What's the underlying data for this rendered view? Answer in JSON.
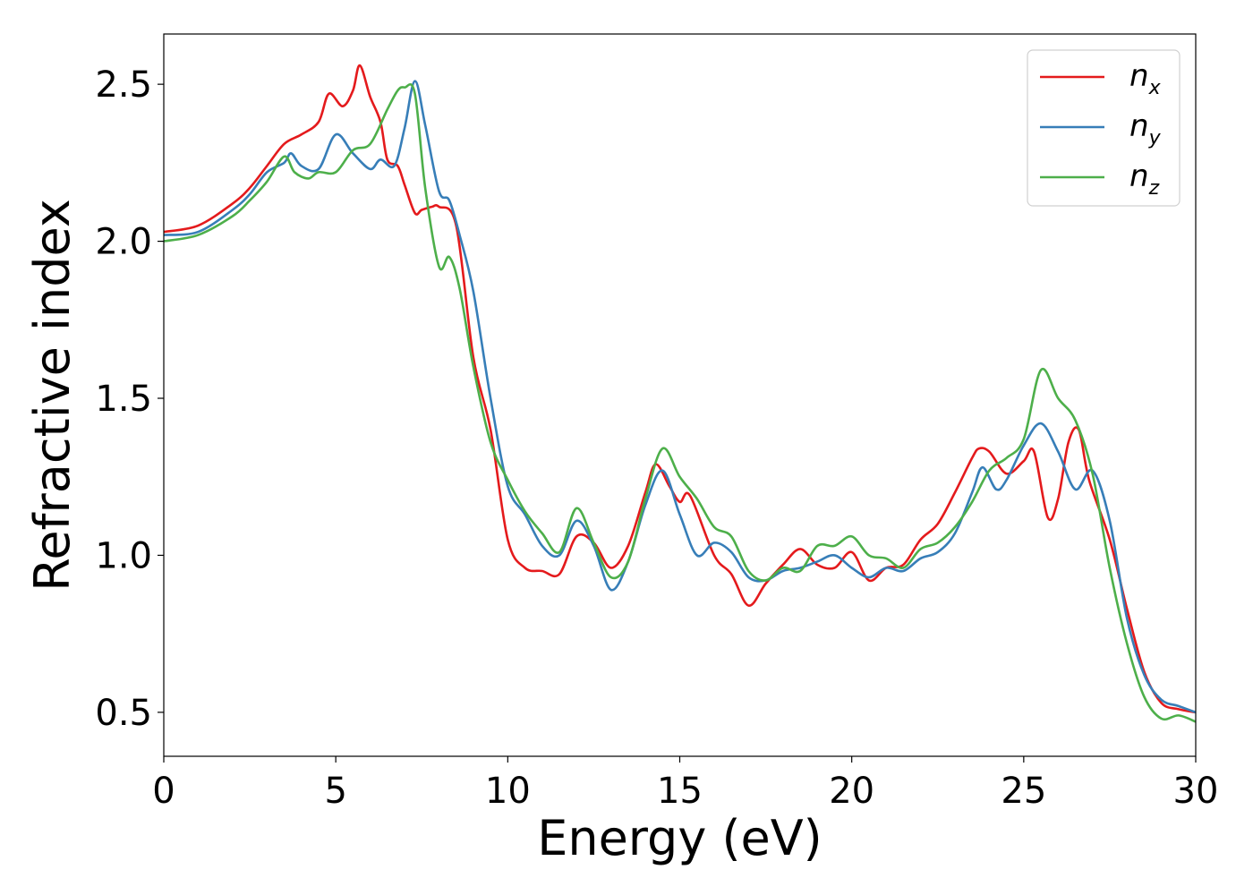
{
  "chart_data": {
    "type": "line",
    "title": "",
    "xlabel": "Energy (eV)",
    "ylabel": "Refractive index",
    "xlim": [
      0,
      30
    ],
    "ylim": [
      0.36,
      2.66
    ],
    "xticks": [
      0,
      5,
      10,
      15,
      20,
      25,
      30
    ],
    "xtick_labels": [
      "0",
      "5",
      "10",
      "15",
      "20",
      "25",
      "30"
    ],
    "yticks": [
      0.5,
      1.0,
      1.5,
      2.0,
      2.5
    ],
    "ytick_labels": [
      "0.5",
      "1.0",
      "1.5",
      "2.0",
      "2.5"
    ],
    "grid": false,
    "legend_position": "top-right",
    "series": [
      {
        "name": "n_x",
        "label_base": "n",
        "label_sub": "x",
        "color": "#e41a1c",
        "x": [
          0,
          1,
          2,
          2.5,
          3,
          3.5,
          4,
          4.5,
          4.8,
          5.2,
          5.5,
          5.7,
          6.0,
          6.3,
          6.5,
          6.8,
          7.0,
          7.3,
          7.5,
          7.8,
          8.0,
          8.5,
          9.0,
          9.5,
          10.0,
          10.5,
          11.0,
          11.5,
          12.0,
          12.5,
          13.0,
          13.5,
          14.0,
          14.3,
          14.7,
          15.0,
          15.3,
          16.0,
          16.5,
          17.0,
          17.5,
          18.0,
          18.5,
          19.0,
          19.5,
          20.0,
          20.5,
          21.0,
          21.5,
          22.0,
          22.5,
          23.0,
          23.5,
          23.7,
          24.0,
          24.5,
          25.0,
          25.3,
          25.7,
          26.0,
          26.3,
          26.6,
          26.9,
          27.5,
          28.0,
          28.5,
          29.0,
          29.5,
          30.0
        ],
        "values": [
          2.03,
          2.05,
          2.12,
          2.17,
          2.24,
          2.31,
          2.34,
          2.38,
          2.47,
          2.43,
          2.48,
          2.56,
          2.46,
          2.38,
          2.26,
          2.24,
          2.18,
          2.09,
          2.1,
          2.11,
          2.11,
          2.05,
          1.63,
          1.4,
          1.05,
          0.96,
          0.95,
          0.94,
          1.06,
          1.04,
          0.96,
          1.03,
          1.2,
          1.29,
          1.22,
          1.17,
          1.19,
          1.0,
          0.94,
          0.84,
          0.91,
          0.97,
          1.02,
          0.97,
          0.96,
          1.01,
          0.92,
          0.96,
          0.97,
          1.05,
          1.1,
          1.2,
          1.31,
          1.34,
          1.33,
          1.26,
          1.3,
          1.33,
          1.12,
          1.18,
          1.36,
          1.4,
          1.24,
          1.05,
          0.83,
          0.63,
          0.53,
          0.51,
          0.5
        ]
      },
      {
        "name": "n_y",
        "label_base": "n",
        "label_sub": "y",
        "color": "#377eb8",
        "x": [
          0,
          1,
          2,
          2.5,
          3,
          3.5,
          3.7,
          4.0,
          4.5,
          5.0,
          5.5,
          6.0,
          6.3,
          6.7,
          7.0,
          7.3,
          7.6,
          8.0,
          8.3,
          8.6,
          9.0,
          9.5,
          10.0,
          10.5,
          11.0,
          11.5,
          12.0,
          12.5,
          13.0,
          13.5,
          14.0,
          14.5,
          15.0,
          15.5,
          16.0,
          16.5,
          17.0,
          17.5,
          18.0,
          18.5,
          19.0,
          19.5,
          20.0,
          20.5,
          21.0,
          21.5,
          22.0,
          22.5,
          23.0,
          23.5,
          23.8,
          24.2,
          24.5,
          25.0,
          25.5,
          26.0,
          26.5,
          27.0,
          27.5,
          28.0,
          28.5,
          29.0,
          29.5,
          30.0
        ],
        "values": [
          2.02,
          2.03,
          2.1,
          2.15,
          2.22,
          2.25,
          2.28,
          2.24,
          2.23,
          2.34,
          2.28,
          2.23,
          2.26,
          2.24,
          2.36,
          2.51,
          2.37,
          2.16,
          2.13,
          2.02,
          1.84,
          1.5,
          1.22,
          1.13,
          1.03,
          1.0,
          1.11,
          1.03,
          0.89,
          0.98,
          1.16,
          1.27,
          1.13,
          1.0,
          1.04,
          1.01,
          0.93,
          0.92,
          0.95,
          0.96,
          0.98,
          1.0,
          0.96,
          0.93,
          0.96,
          0.95,
          0.99,
          1.01,
          1.07,
          1.2,
          1.28,
          1.21,
          1.24,
          1.35,
          1.42,
          1.33,
          1.21,
          1.27,
          1.11,
          0.8,
          0.62,
          0.54,
          0.52,
          0.5
        ]
      },
      {
        "name": "n_z",
        "label_base": "n",
        "label_sub": "z",
        "color": "#4daf4a",
        "x": [
          0,
          1,
          2,
          2.5,
          3,
          3.5,
          3.8,
          4.2,
          4.5,
          5.0,
          5.5,
          6.0,
          6.5,
          6.8,
          7.0,
          7.3,
          7.6,
          8.0,
          8.3,
          8.6,
          9.0,
          9.5,
          10.0,
          10.5,
          11.0,
          11.5,
          12.0,
          12.5,
          13.0,
          13.5,
          14.0,
          14.5,
          15.0,
          15.5,
          16.0,
          16.5,
          17.0,
          17.5,
          18.0,
          18.5,
          19.0,
          19.5,
          20.0,
          20.5,
          21.0,
          21.5,
          22.0,
          22.5,
          23.0,
          23.5,
          24.0,
          24.5,
          25.0,
          25.5,
          26.0,
          26.5,
          27.0,
          27.5,
          28.0,
          28.5,
          29.0,
          29.5,
          30.0
        ],
        "values": [
          2.0,
          2.02,
          2.08,
          2.13,
          2.19,
          2.27,
          2.22,
          2.2,
          2.22,
          2.22,
          2.29,
          2.31,
          2.42,
          2.48,
          2.49,
          2.47,
          2.17,
          1.92,
          1.95,
          1.85,
          1.6,
          1.36,
          1.24,
          1.14,
          1.07,
          1.01,
          1.15,
          1.04,
          0.93,
          0.98,
          1.18,
          1.34,
          1.25,
          1.18,
          1.09,
          1.06,
          0.95,
          0.92,
          0.96,
          0.95,
          1.03,
          1.03,
          1.06,
          1.0,
          0.99,
          0.96,
          1.02,
          1.04,
          1.09,
          1.17,
          1.27,
          1.31,
          1.37,
          1.59,
          1.5,
          1.43,
          1.26,
          0.96,
          0.72,
          0.55,
          0.48,
          0.49,
          0.47
        ]
      }
    ]
  }
}
